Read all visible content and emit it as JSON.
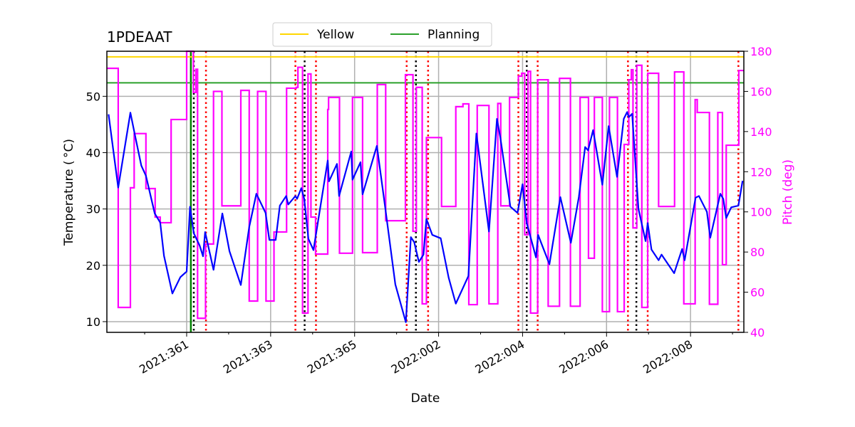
{
  "chart_data": {
    "type": "line",
    "title": "1PDEAAT",
    "xlabel": "Date",
    "ylabel": "Temperature ($^\\circ$C)",
    "ylabel_display": "Temperature ( °C)",
    "y2label": "Pitch (deg)",
    "x_units": "days relative to 2021:361",
    "xlim": [
      -1.9,
      13.27
    ],
    "ylim": [
      8.1,
      58.0
    ],
    "y2lim": [
      40,
      180
    ],
    "grid": true,
    "legend_placement": "top-center, above plot",
    "xticks": [
      {
        "d": 0,
        "label": "2021:361"
      },
      {
        "d": 2,
        "label": "2021:363"
      },
      {
        "d": 4,
        "label": "2021:365"
      },
      {
        "d": 6,
        "label": "2022:002"
      },
      {
        "d": 8,
        "label": "2022:004"
      },
      {
        "d": 10,
        "label": "2022:006"
      },
      {
        "d": 12,
        "label": "2022:008"
      }
    ],
    "minor_xticks": [
      -1,
      1,
      3,
      5,
      7,
      9,
      11,
      13
    ],
    "yticks": [
      10,
      20,
      30,
      40,
      50
    ],
    "y2ticks": [
      40,
      60,
      80,
      100,
      120,
      140,
      160,
      180
    ],
    "limits": [
      {
        "name": "Yellow",
        "value": 57.0,
        "color": "#ffd700"
      },
      {
        "name": "Planning",
        "value": 52.4,
        "color": "#2ca02c"
      }
    ],
    "colors": {
      "temperature": "#0000ff",
      "pitch": "#ff00ff",
      "pitch_axis": "#ff00ff"
    },
    "temperature": [
      [
        -1.86,
        46.8
      ],
      [
        -1.63,
        33.8
      ],
      [
        -1.34,
        47.1
      ],
      [
        -1.22,
        42.7
      ],
      [
        -1.08,
        37.7
      ],
      [
        -0.97,
        35.9
      ],
      [
        -0.76,
        29.2
      ],
      [
        -0.63,
        27.6
      ],
      [
        -0.54,
        21.7
      ],
      [
        -0.34,
        15.0
      ],
      [
        -0.15,
        17.9
      ],
      [
        0,
        18.9
      ],
      [
        0.08,
        30.4
      ],
      [
        0.17,
        25.7
      ],
      [
        0.31,
        23.5
      ],
      [
        0.39,
        21.6
      ],
      [
        0.44,
        25.9
      ],
      [
        0.64,
        19.2
      ],
      [
        0.85,
        29.2
      ],
      [
        1.02,
        22.5
      ],
      [
        1.29,
        16.5
      ],
      [
        1.49,
        26.8
      ],
      [
        1.66,
        32.7
      ],
      [
        1.88,
        29.3
      ],
      [
        1.97,
        24.5
      ],
      [
        2.12,
        24.5
      ],
      [
        2.22,
        30.6
      ],
      [
        2.37,
        32.3
      ],
      [
        2.42,
        30.8
      ],
      [
        2.59,
        32.3
      ],
      [
        2.63,
        31.8
      ],
      [
        2.73,
        33.7
      ],
      [
        2.8,
        31.8
      ],
      [
        2.9,
        24.7
      ],
      [
        3.02,
        22.7
      ],
      [
        3.36,
        38.6
      ],
      [
        3.39,
        34.9
      ],
      [
        3.58,
        38.0
      ],
      [
        3.63,
        32.3
      ],
      [
        3.92,
        40.2
      ],
      [
        3.95,
        35.2
      ],
      [
        4.14,
        38.3
      ],
      [
        4.19,
        32.6
      ],
      [
        4.53,
        41.2
      ],
      [
        4.71,
        31.3
      ],
      [
        4.97,
        16.6
      ],
      [
        5.22,
        9.9
      ],
      [
        5.34,
        25.0
      ],
      [
        5.42,
        24.1
      ],
      [
        5.53,
        20.6
      ],
      [
        5.64,
        21.9
      ],
      [
        5.71,
        28.2
      ],
      [
        5.85,
        25.4
      ],
      [
        6.05,
        24.8
      ],
      [
        6.24,
        17.8
      ],
      [
        6.41,
        13.2
      ],
      [
        6.71,
        18.1
      ],
      [
        6.9,
        43.4
      ],
      [
        7.2,
        26.0
      ],
      [
        7.39,
        46.0
      ],
      [
        7.47,
        42.7
      ],
      [
        7.71,
        30.4
      ],
      [
        7.88,
        29.3
      ],
      [
        8.0,
        34.4
      ],
      [
        8.1,
        27.5
      ],
      [
        8.32,
        21.4
      ],
      [
        8.37,
        25.4
      ],
      [
        8.64,
        20.2
      ],
      [
        8.9,
        32.1
      ],
      [
        9.15,
        24.0
      ],
      [
        9.34,
        32.1
      ],
      [
        9.49,
        41.0
      ],
      [
        9.56,
        40.4
      ],
      [
        9.68,
        44.0
      ],
      [
        9.9,
        34.3
      ],
      [
        10.05,
        44.7
      ],
      [
        10.25,
        35.7
      ],
      [
        10.41,
        46.0
      ],
      [
        10.49,
        47.2
      ],
      [
        10.53,
        46.3
      ],
      [
        10.61,
        46.9
      ],
      [
        10.76,
        30.0
      ],
      [
        10.93,
        24.3
      ],
      [
        10.98,
        27.5
      ],
      [
        11.07,
        22.8
      ],
      [
        11.24,
        20.9
      ],
      [
        11.31,
        21.9
      ],
      [
        11.61,
        18.6
      ],
      [
        11.8,
        22.9
      ],
      [
        11.86,
        20.9
      ],
      [
        12.12,
        32.0
      ],
      [
        12.2,
        32.3
      ],
      [
        12.39,
        29.5
      ],
      [
        12.47,
        24.9
      ],
      [
        12.71,
        32.7
      ],
      [
        12.78,
        31.8
      ],
      [
        12.85,
        28.4
      ],
      [
        12.97,
        30.3
      ],
      [
        13.14,
        30.6
      ],
      [
        13.24,
        35.0
      ]
    ],
    "pitch_steps": [
      [
        -1.9,
        171.5
      ],
      [
        -1.63,
        52.4
      ],
      [
        -1.34,
        112
      ],
      [
        -1.25,
        139
      ],
      [
        -0.97,
        111.6
      ],
      [
        -0.75,
        97.4
      ],
      [
        -0.63,
        94.6
      ],
      [
        -0.37,
        146
      ],
      [
        0.0,
        180
      ],
      [
        0.16,
        159.5
      ],
      [
        0.22,
        171
      ],
      [
        0.26,
        47
      ],
      [
        0.45,
        84
      ],
      [
        0.64,
        160
      ],
      [
        0.84,
        103
      ],
      [
        1.29,
        160.5
      ],
      [
        1.49,
        55.6
      ],
      [
        1.69,
        160
      ],
      [
        1.89,
        55.6
      ],
      [
        2.08,
        90
      ],
      [
        2.38,
        161.6
      ],
      [
        2.61,
        162
      ],
      [
        2.65,
        172
      ],
      [
        2.76,
        49.6
      ],
      [
        2.89,
        168.7
      ],
      [
        2.96,
        97.4
      ],
      [
        3.07,
        79
      ],
      [
        3.36,
        151
      ],
      [
        3.38,
        157
      ],
      [
        3.64,
        79.4
      ],
      [
        3.95,
        157
      ],
      [
        4.19,
        79.7
      ],
      [
        4.54,
        163.4
      ],
      [
        4.74,
        95.6
      ],
      [
        5.21,
        168.3
      ],
      [
        5.39,
        90.3
      ],
      [
        5.47,
        162
      ],
      [
        5.61,
        54.2
      ],
      [
        5.71,
        137
      ],
      [
        6.07,
        102.7
      ],
      [
        6.41,
        152.4
      ],
      [
        6.58,
        153.8
      ],
      [
        6.72,
        53.8
      ],
      [
        6.92,
        153
      ],
      [
        7.2,
        54.2
      ],
      [
        7.41,
        154
      ],
      [
        7.48,
        103
      ],
      [
        7.69,
        157
      ],
      [
        7.9,
        167.6
      ],
      [
        7.98,
        169
      ],
      [
        8.05,
        88.6
      ],
      [
        8.13,
        170
      ],
      [
        8.19,
        49.6
      ],
      [
        8.36,
        165.8
      ],
      [
        8.61,
        53
      ],
      [
        8.88,
        166.5
      ],
      [
        9.14,
        53
      ],
      [
        9.37,
        157
      ],
      [
        9.57,
        76.9
      ],
      [
        9.71,
        157
      ],
      [
        9.9,
        50.3
      ],
      [
        10.07,
        157
      ],
      [
        10.26,
        50.3
      ],
      [
        10.42,
        133.6
      ],
      [
        10.53,
        165.8
      ],
      [
        10.59,
        170.8
      ],
      [
        10.63,
        92
      ],
      [
        10.72,
        173
      ],
      [
        10.84,
        52.4
      ],
      [
        10.98,
        169
      ],
      [
        11.24,
        102.7
      ],
      [
        11.62,
        169.7
      ],
      [
        11.84,
        54.2
      ],
      [
        12.11,
        155.9
      ],
      [
        12.16,
        149.5
      ],
      [
        12.45,
        54
      ],
      [
        12.65,
        149.5
      ],
      [
        12.76,
        73.7
      ],
      [
        12.85,
        133.2
      ],
      [
        13.15,
        170.4
      ],
      [
        13.27,
        170.4
      ]
    ],
    "event_lines": {
      "green_solid": [
        0.1
      ],
      "black_dotted": [
        0.17,
        2.81,
        5.46,
        8.1,
        10.71
      ],
      "red_dotted": [
        0.46,
        2.59,
        3.08,
        5.24,
        5.75,
        7.9,
        8.36,
        10.51,
        10.98,
        13.14
      ]
    }
  }
}
